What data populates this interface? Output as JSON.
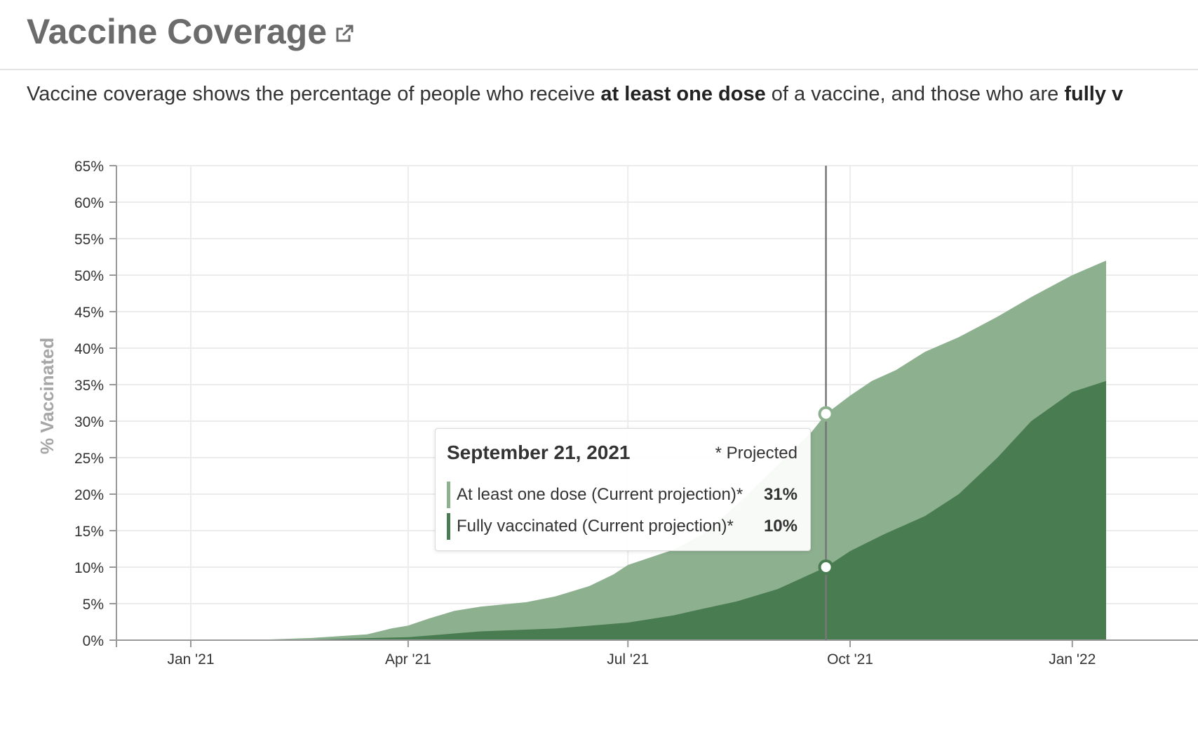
{
  "header": {
    "title": "Vaccine Coverage",
    "external_link_icon": "external-link-icon"
  },
  "description": {
    "part1": "Vaccine coverage shows the percentage of people who receive ",
    "bold1": "at least one dose",
    "part2": " of a vaccine, and those who are ",
    "bold2": "fully v"
  },
  "tooltip": {
    "date": "September 21, 2021",
    "note": "* Projected",
    "rows": [
      {
        "label": "At least one dose (Current projection)*",
        "value": "31%",
        "color": "#8db08f"
      },
      {
        "label": "Fully vaccinated (Current projection)*",
        "value": "10%",
        "color": "#4a7c51"
      }
    ]
  },
  "chart_data": {
    "type": "area",
    "ylabel": "% Vaccinated",
    "xlabel": "",
    "ylim": [
      0,
      65
    ],
    "yticks": [
      0,
      5,
      10,
      15,
      20,
      25,
      30,
      35,
      40,
      45,
      50,
      55,
      60,
      65
    ],
    "ytick_labels": [
      "0%",
      "5%",
      "10%",
      "15%",
      "20%",
      "25%",
      "30%",
      "35%",
      "40%",
      "45%",
      "50%",
      "55%",
      "60%",
      "65%"
    ],
    "xlim": [
      "2020-12-01",
      "2022-01-15"
    ],
    "xticks": [
      "2021-01-01",
      "2021-04-01",
      "2021-07-01",
      "2021-10-01",
      "2022-01-01"
    ],
    "xtick_labels": [
      "Jan '21",
      "Apr '21",
      "Jul '21",
      "Oct '21",
      "Jan '22"
    ],
    "grid": true,
    "hover_date": "2021-09-21",
    "colors": {
      "light": "#8db08f",
      "dark": "#4a7c51"
    },
    "series": [
      {
        "name": "At least one dose (Current projection)*",
        "color": "#8db08f",
        "x": [
          "2020-12-01",
          "2021-01-25",
          "2021-02-20",
          "2021-03-15",
          "2021-03-25",
          "2021-04-01",
          "2021-04-10",
          "2021-04-20",
          "2021-05-01",
          "2021-05-20",
          "2021-06-01",
          "2021-06-15",
          "2021-06-25",
          "2021-07-01",
          "2021-07-10",
          "2021-07-20",
          "2021-08-01",
          "2021-08-15",
          "2021-09-01",
          "2021-09-15",
          "2021-09-21",
          "2021-10-01",
          "2021-10-10",
          "2021-10-20",
          "2021-11-01",
          "2021-11-15",
          "2021-12-01",
          "2021-12-15",
          "2022-01-01",
          "2022-01-15"
        ],
        "values": [
          0,
          0,
          0.3,
          0.8,
          1.6,
          2.0,
          3.0,
          4.0,
          4.6,
          5.2,
          6.0,
          7.4,
          9.0,
          10.3,
          11.3,
          12.4,
          14.5,
          18.5,
          24.0,
          28.5,
          31.0,
          33.5,
          35.5,
          37.0,
          39.5,
          41.5,
          44.3,
          47.0,
          50.0,
          52.0
        ]
      },
      {
        "name": "Fully vaccinated (Current projection)*",
        "color": "#4a7c51",
        "x": [
          "2020-12-01",
          "2021-02-20",
          "2021-04-01",
          "2021-05-01",
          "2021-06-01",
          "2021-07-01",
          "2021-07-20",
          "2021-08-01",
          "2021-08-15",
          "2021-09-01",
          "2021-09-21",
          "2021-10-01",
          "2021-10-15",
          "2021-11-01",
          "2021-11-15",
          "2021-12-01",
          "2021-12-15",
          "2022-01-01",
          "2022-01-15"
        ],
        "values": [
          0,
          0.1,
          0.4,
          1.2,
          1.6,
          2.4,
          3.4,
          4.3,
          5.3,
          7.0,
          10.0,
          12.2,
          14.5,
          17.0,
          20.0,
          25.0,
          30.0,
          34.0,
          35.5
        ]
      }
    ]
  }
}
